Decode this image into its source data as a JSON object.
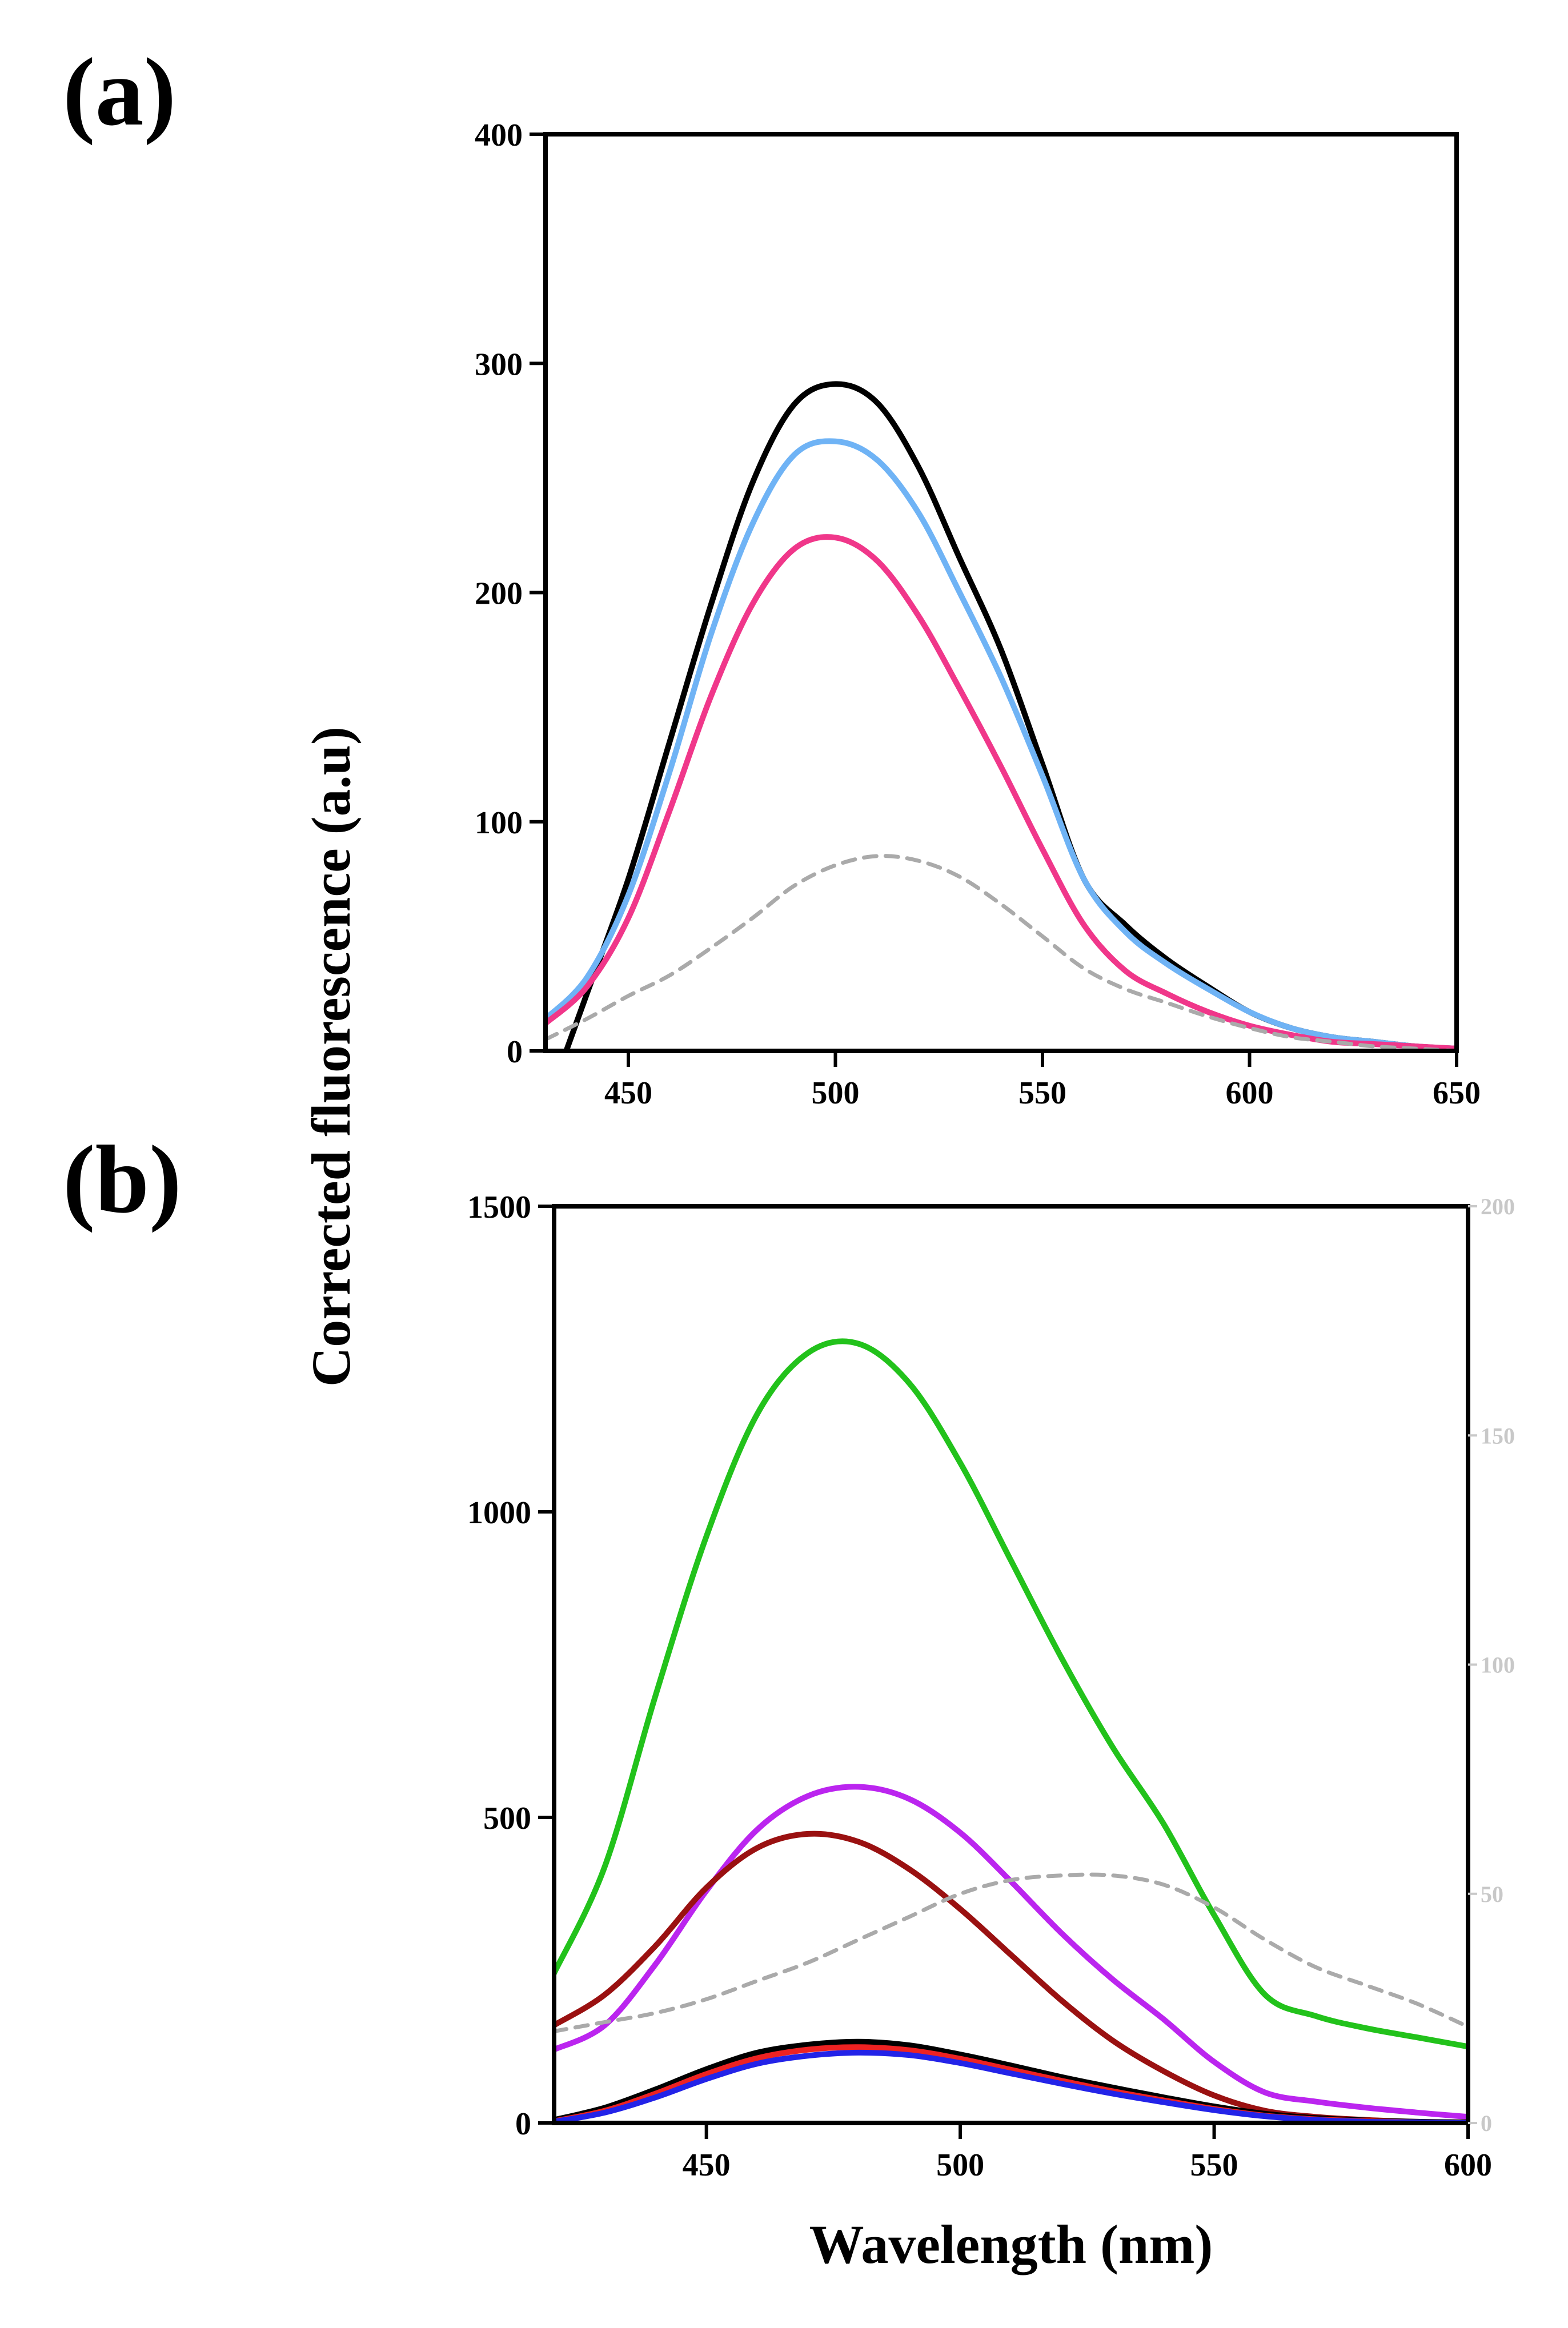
{
  "chart_data": [
    {
      "panel": "(a)",
      "type": "line",
      "xlabel": "Wavelength (nm)",
      "ylabel": "Corrected fluorescence (a.u)",
      "xlim": [
        430,
        650
      ],
      "ylim": [
        0,
        400
      ],
      "x_ticks": [
        450,
        500,
        550,
        600,
        650
      ],
      "y_ticks": [
        0,
        100,
        200,
        300,
        400
      ],
      "series": [
        {
          "name": "black",
          "color": "#000000",
          "dashed": false,
          "x": [
            435,
            440,
            450,
            460,
            470,
            480,
            490,
            500,
            510,
            520,
            530,
            540,
            550,
            560,
            570,
            580,
            590,
            600,
            610,
            620,
            630,
            640,
            650
          ],
          "y": [
            0,
            25,
            75,
            135,
            195,
            248,
            282,
            291,
            283,
            255,
            215,
            175,
            125,
            75,
            55,
            40,
            28,
            17,
            10,
            6,
            4,
            2,
            1
          ]
        },
        {
          "name": "light-blue",
          "color": "#6fb3f5",
          "dashed": false,
          "x": [
            430,
            440,
            450,
            460,
            470,
            480,
            490,
            500,
            510,
            520,
            530,
            540,
            550,
            560,
            570,
            580,
            590,
            600,
            610,
            620,
            630,
            640,
            650
          ],
          "y": [
            14,
            32,
            68,
            122,
            182,
            230,
            260,
            266,
            258,
            235,
            200,
            163,
            120,
            75,
            52,
            38,
            27,
            17,
            10,
            6,
            4,
            2,
            1
          ]
        },
        {
          "name": "pink",
          "color": "#f0378a",
          "dashed": false,
          "x": [
            430,
            440,
            450,
            460,
            470,
            480,
            490,
            500,
            510,
            520,
            530,
            540,
            550,
            560,
            570,
            580,
            590,
            600,
            610,
            620,
            630,
            640,
            650
          ],
          "y": [
            12,
            28,
            58,
            105,
            155,
            195,
            219,
            224,
            214,
            190,
            158,
            124,
            88,
            55,
            35,
            25,
            17,
            11,
            7,
            4,
            3,
            2,
            1
          ]
        },
        {
          "name": "gray-dashed",
          "color": "#aaaaaa",
          "dashed": true,
          "x": [
            430,
            440,
            450,
            460,
            470,
            480,
            490,
            500,
            510,
            520,
            530,
            540,
            550,
            560,
            570,
            580,
            590,
            600,
            610,
            620,
            630,
            640,
            650
          ],
          "y": [
            5,
            14,
            24,
            33,
            45,
            58,
            72,
            81,
            85,
            83,
            76,
            64,
            50,
            36,
            27,
            21,
            15,
            10,
            6,
            4,
            2,
            1,
            0
          ]
        }
      ]
    },
    {
      "panel": "(b)",
      "type": "line",
      "xlabel": "Wavelength (nm)",
      "ylabel": "Corrected fluorescence (a.u)",
      "xlim": [
        420,
        600
      ],
      "ylim": [
        0,
        1500
      ],
      "y2lim": [
        0,
        200
      ],
      "x_ticks": [
        450,
        500,
        550,
        600
      ],
      "y_ticks": [
        0,
        500,
        1000,
        1500
      ],
      "y2_ticks": [
        0,
        50,
        100,
        150,
        200
      ],
      "series": [
        {
          "name": "green",
          "color": "#22c21b",
          "dashed": false,
          "x": [
            420,
            430,
            440,
            450,
            460,
            470,
            480,
            490,
            500,
            510,
            520,
            530,
            540,
            550,
            560,
            570,
            580,
            590,
            600
          ],
          "y": [
            245,
            420,
            700,
            960,
            1160,
            1260,
            1275,
            1210,
            1080,
            920,
            760,
            615,
            490,
            340,
            210,
            175,
            155,
            140,
            125
          ]
        },
        {
          "name": "violet",
          "color": "#bb25ef",
          "dashed": false,
          "x": [
            420,
            430,
            440,
            450,
            460,
            470,
            480,
            490,
            500,
            510,
            520,
            530,
            540,
            550,
            560,
            570,
            580,
            590,
            600
          ],
          "y": [
            120,
            160,
            260,
            380,
            480,
            535,
            550,
            530,
            475,
            395,
            310,
            235,
            170,
            100,
            50,
            35,
            25,
            17,
            10
          ]
        },
        {
          "name": "dark-red",
          "color": "#9a1111",
          "dashed": false,
          "x": [
            420,
            430,
            440,
            450,
            460,
            470,
            480,
            490,
            500,
            510,
            520,
            530,
            540,
            550,
            560,
            570,
            580,
            590,
            600
          ],
          "y": [
            160,
            210,
            290,
            385,
            450,
            473,
            460,
            415,
            350,
            275,
            200,
            135,
            85,
            45,
            20,
            10,
            5,
            2,
            1
          ]
        },
        {
          "name": "gray-dashed",
          "color": "#aaaaaa",
          "dashed": true,
          "axis": "right",
          "x": [
            420,
            430,
            440,
            450,
            460,
            470,
            480,
            490,
            500,
            510,
            520,
            530,
            540,
            550,
            560,
            570,
            580,
            590,
            600
          ],
          "y": [
            20,
            22,
            24,
            27,
            31,
            35,
            40,
            45,
            50,
            53,
            54,
            54,
            52,
            47,
            40,
            34,
            30,
            26,
            21
          ]
        },
        {
          "name": "black",
          "color": "#000000",
          "dashed": false,
          "x": [
            420,
            430,
            440,
            450,
            460,
            470,
            480,
            490,
            500,
            510,
            520,
            530,
            540,
            550,
            560,
            570,
            580,
            590,
            600
          ],
          "y": [
            5,
            25,
            55,
            88,
            115,
            128,
            133,
            127,
            112,
            94,
            75,
            58,
            42,
            27,
            15,
            8,
            4,
            2,
            1
          ]
        },
        {
          "name": "red",
          "color": "#ee2222",
          "dashed": false,
          "x": [
            420,
            430,
            440,
            450,
            460,
            470,
            480,
            490,
            500,
            510,
            520,
            530,
            540,
            550,
            560,
            570,
            580,
            590,
            600
          ],
          "y": [
            3,
            20,
            48,
            80,
            106,
            120,
            124,
            119,
            105,
            87,
            69,
            52,
            37,
            23,
            12,
            6,
            3,
            1,
            0
          ]
        },
        {
          "name": "blue",
          "color": "#2323e8",
          "dashed": false,
          "x": [
            420,
            430,
            440,
            450,
            460,
            470,
            480,
            490,
            500,
            510,
            520,
            530,
            540,
            550,
            560,
            570,
            580,
            590,
            600
          ],
          "y": [
            2,
            17,
            42,
            72,
            97,
            110,
            115,
            111,
            98,
            81,
            64,
            48,
            34,
            21,
            11,
            5,
            2,
            1,
            0
          ]
        }
      ]
    }
  ]
}
